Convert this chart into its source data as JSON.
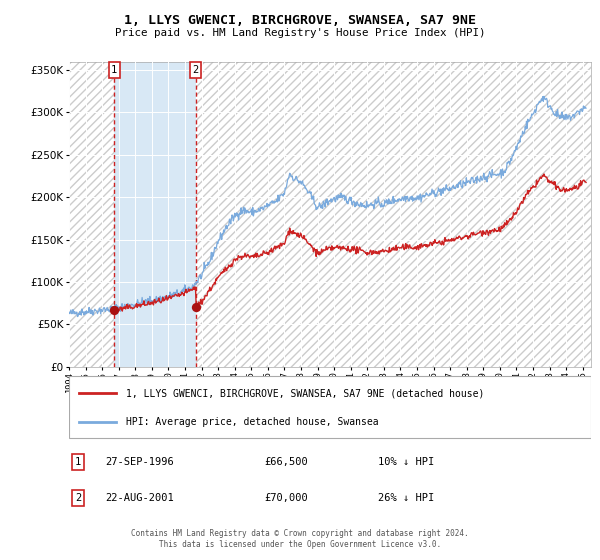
{
  "title": "1, LLYS GWENCI, BIRCHGROVE, SWANSEA, SA7 9NE",
  "subtitle": "Price paid vs. HM Land Registry's House Price Index (HPI)",
  "legend_entry1": "1, LLYS GWENCI, BIRCHGROVE, SWANSEA, SA7 9NE (detached house)",
  "legend_entry2": "HPI: Average price, detached house, Swansea",
  "sale1_date": "27-SEP-1996",
  "sale1_price": 66500,
  "sale1_hpi": "10% ↓ HPI",
  "sale2_date": "22-AUG-2001",
  "sale2_price": 70000,
  "sale2_hpi": "26% ↓ HPI",
  "footer1": "Contains HM Land Registry data © Crown copyright and database right 2024.",
  "footer2": "This data is licensed under the Open Government Licence v3.0.",
  "hpi_color": "#7aaadd",
  "price_color": "#cc2222",
  "sale_dot_color": "#aa1111",
  "vline_color": "#cc2222",
  "shaded_blue_color": "#d8e8f5",
  "hatch_color": "#cccccc",
  "bg_color": "#e8e8e8",
  "grid_color": "#ffffff",
  "ylim": [
    0,
    360000
  ],
  "xlim_start": 1994.0,
  "xlim_end": 2025.5,
  "sale1_year": 1996.73,
  "sale2_year": 2001.64
}
